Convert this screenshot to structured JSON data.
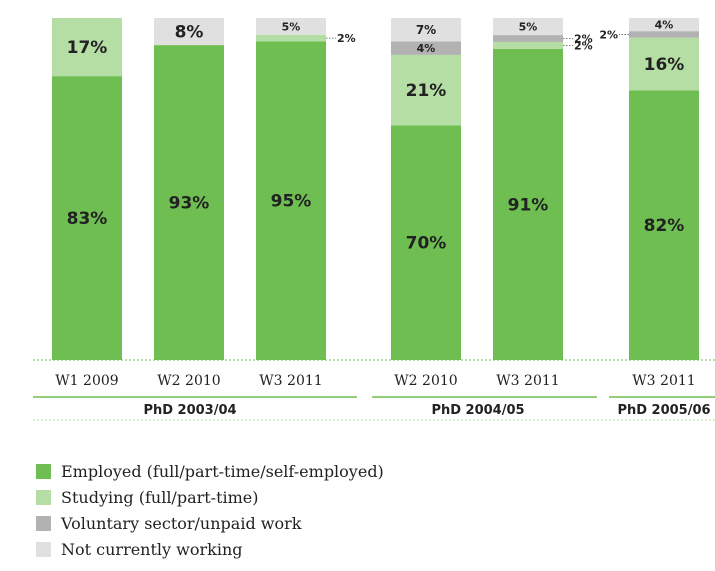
{
  "colors": {
    "employed": "#6ebe51",
    "studying": "#b5dea4",
    "voluntary": "#b2b2b2",
    "not_working": "#e0e0e0",
    "rule": "#6ebe51"
  },
  "chart_data": {
    "type": "bar",
    "stacked": true,
    "ylim": [
      0,
      100
    ],
    "legend_position": "bottom-left",
    "series": [
      {
        "name": "Employed (full/part-time/self-employed)",
        "color_key": "employed"
      },
      {
        "name": "Studying (full/part-time)",
        "color_key": "studying"
      },
      {
        "name": "Voluntary sector/unpaid work",
        "color_key": "voluntary"
      },
      {
        "name": "Not currently working",
        "color_key": "not_working"
      }
    ],
    "groups": [
      {
        "label": "PhD 2003/04",
        "bars": [
          {
            "label": "W1 2009",
            "values": [
              83,
              17,
              0,
              0
            ],
            "labels": [
              "83%",
              "17%",
              "",
              ""
            ]
          },
          {
            "label": "W2 2010",
            "values": [
              93,
              0,
              0,
              8
            ],
            "labels": [
              "93%",
              "",
              "",
              "8%"
            ]
          },
          {
            "label": "W3 2011",
            "values": [
              95,
              2,
              0,
              5
            ],
            "labels": [
              "95%",
              "2%",
              "",
              "5%"
            ]
          }
        ]
      },
      {
        "label": "PhD 2004/05",
        "bars": [
          {
            "label": "W2 2010",
            "values": [
              70,
              21,
              4,
              7
            ],
            "labels": [
              "70%",
              "21%",
              "4%",
              "7%"
            ]
          },
          {
            "label": "W3 2011",
            "values": [
              91,
              2,
              2,
              5
            ],
            "labels": [
              "91%",
              "2%",
              "2%",
              "5%"
            ]
          }
        ]
      },
      {
        "label": "PhD 2005/06",
        "bars": [
          {
            "label": "W3 2011",
            "values": [
              82,
              16,
              2,
              4
            ],
            "labels": [
              "82%",
              "16%",
              "2%",
              "4%"
            ]
          }
        ]
      }
    ]
  }
}
